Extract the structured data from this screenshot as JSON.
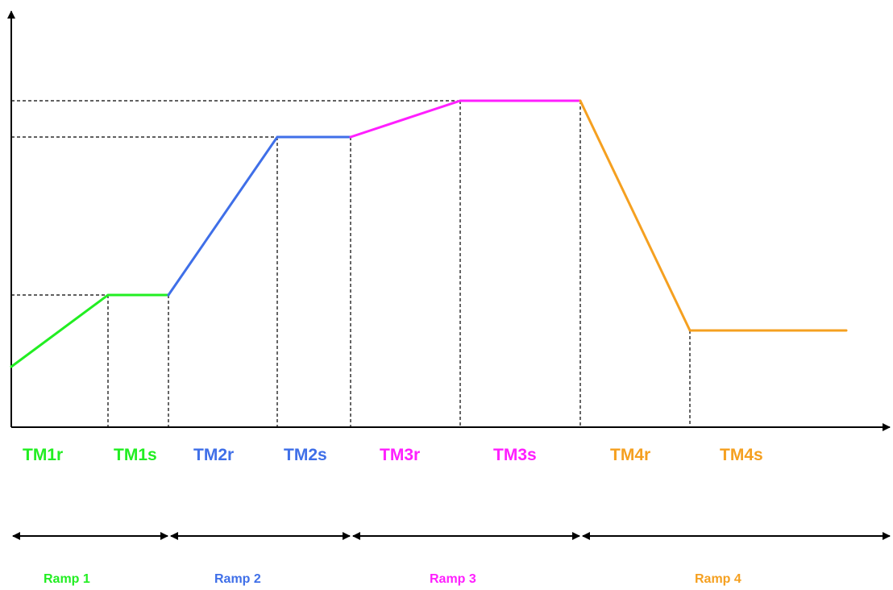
{
  "diagram": {
    "phase_labels": [
      "TM1r",
      "TM1s",
      "TM2r",
      "TM2s",
      "TM3r",
      "TM3s",
      "TM4r",
      "TM4s"
    ],
    "ramp_labels": [
      "Ramp 1",
      "Ramp 2",
      "Ramp 3",
      "Ramp 4"
    ],
    "colors": {
      "ramp_1": "#22ee22",
      "ramp_2": "#3f6fe8",
      "ramp_3": "#ff1fff",
      "ramp_4": "#f5a020",
      "axis": "#000000"
    }
  }
}
